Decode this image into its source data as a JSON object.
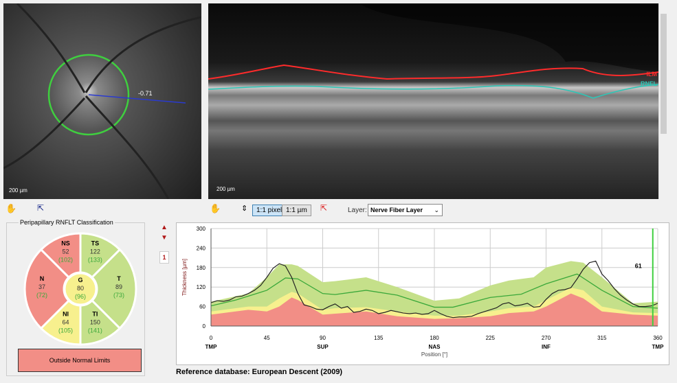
{
  "fundus": {
    "scale_label": "200 µm",
    "measure_label": "-0.71",
    "circle_color": "#3fcf3f"
  },
  "oct": {
    "scale_label": "200 µm",
    "layer_labels": [
      "ILM",
      "RNFL"
    ],
    "ilm_color": "#ff2b2b",
    "rnfl_color": "#2ac8b8"
  },
  "toolbar": {
    "pixel_label": "1:1 pixel",
    "um_label": "1:1 µm",
    "layer_label": "Layer:",
    "layer_value": "Nerve Fiber Layer"
  },
  "classification": {
    "title": "Peripapillary RNFLT Classification",
    "sectors": [
      {
        "id": "NS",
        "value": "52",
        "normal": "(102)",
        "color": "#f28e86"
      },
      {
        "id": "TS",
        "value": "122",
        "normal": "(133)",
        "color": "#c5e08a"
      },
      {
        "id": "T",
        "value": "89",
        "normal": "(73)",
        "color": "#c5e08a"
      },
      {
        "id": "TI",
        "value": "150",
        "normal": "(141)",
        "color": "#c5e08a"
      },
      {
        "id": "NI",
        "value": "64",
        "normal": "(105)",
        "color": "#f7f08e"
      },
      {
        "id": "N",
        "value": "37",
        "normal": "(72)",
        "color": "#f28e86"
      },
      {
        "id": "G",
        "value": "80",
        "normal": "(96)",
        "color": "#f7f08e"
      }
    ],
    "result": "Outside Normal Limits"
  },
  "side": {
    "page": "1"
  },
  "reference": "Reference database: European Descent (2009)",
  "chart_data": {
    "type": "area",
    "ylabel": "Thickness [µm]",
    "xlabel": "Position [°]",
    "ylim": [
      0,
      300
    ],
    "xlim": [
      0,
      360
    ],
    "yticks": [
      0,
      60,
      120,
      180,
      240,
      300
    ],
    "xticks": [
      0,
      45,
      90,
      135,
      180,
      225,
      270,
      315,
      360
    ],
    "xsector_labels": [
      {
        "x": 0,
        "label": "TMP"
      },
      {
        "x": 90,
        "label": "SUP"
      },
      {
        "x": 180,
        "label": "NAS"
      },
      {
        "x": 270,
        "label": "INF"
      },
      {
        "x": 360,
        "label": "TMP"
      }
    ],
    "marker": {
      "x": 356,
      "label": "61"
    },
    "grid": true,
    "bands": {
      "x": [
        0,
        30,
        45,
        55,
        65,
        70,
        90,
        100,
        125,
        150,
        180,
        200,
        225,
        240,
        260,
        270,
        290,
        300,
        315,
        340,
        360
      ],
      "red_upper": [
        35,
        50,
        45,
        60,
        88,
        80,
        35,
        38,
        45,
        30,
        22,
        24,
        30,
        40,
        45,
        60,
        100,
        85,
        45,
        35,
        32
      ],
      "yellow_upper": [
        45,
        60,
        60,
        85,
        105,
        100,
        50,
        55,
        58,
        45,
        32,
        32,
        45,
        55,
        60,
        80,
        118,
        110,
        60,
        42,
        40
      ],
      "green_upper": [
        75,
        100,
        150,
        190,
        190,
        185,
        135,
        138,
        150,
        120,
        78,
        85,
        125,
        140,
        150,
        180,
        200,
        195,
        150,
        70,
        75
      ]
    },
    "mean": {
      "x": [
        0,
        20,
        45,
        60,
        70,
        90,
        100,
        125,
        150,
        180,
        195,
        225,
        250,
        270,
        295,
        315,
        340,
        360
      ],
      "y": [
        62,
        80,
        110,
        148,
        145,
        100,
        97,
        110,
        95,
        58,
        58,
        88,
        98,
        130,
        160,
        110,
        60,
        55
      ]
    },
    "measured": {
      "x": [
        0,
        5,
        10,
        15,
        20,
        25,
        30,
        35,
        40,
        45,
        50,
        55,
        60,
        65,
        70,
        75,
        80,
        85,
        90,
        95,
        100,
        105,
        110,
        115,
        120,
        125,
        130,
        135,
        140,
        145,
        150,
        155,
        160,
        165,
        170,
        175,
        180,
        185,
        190,
        195,
        200,
        205,
        210,
        215,
        220,
        225,
        230,
        235,
        240,
        245,
        250,
        255,
        260,
        265,
        270,
        275,
        280,
        285,
        290,
        295,
        300,
        305,
        310,
        315,
        320,
        325,
        330,
        335,
        340,
        345,
        350,
        355,
        360
      ],
      "y": [
        72,
        78,
        76,
        80,
        90,
        92,
        100,
        110,
        125,
        150,
        178,
        192,
        185,
        150,
        100,
        65,
        60,
        52,
        50,
        60,
        68,
        55,
        60,
        42,
        45,
        52,
        48,
        38,
        42,
        48,
        44,
        40,
        38,
        40,
        36,
        38,
        48,
        38,
        30,
        26,
        28,
        28,
        30,
        38,
        44,
        50,
        56,
        68,
        72,
        62,
        65,
        70,
        58,
        60,
        82,
        100,
        110,
        112,
        118,
        145,
        175,
        195,
        200,
        160,
        140,
        115,
        95,
        80,
        68,
        60,
        60,
        62,
        70
      ]
    }
  }
}
